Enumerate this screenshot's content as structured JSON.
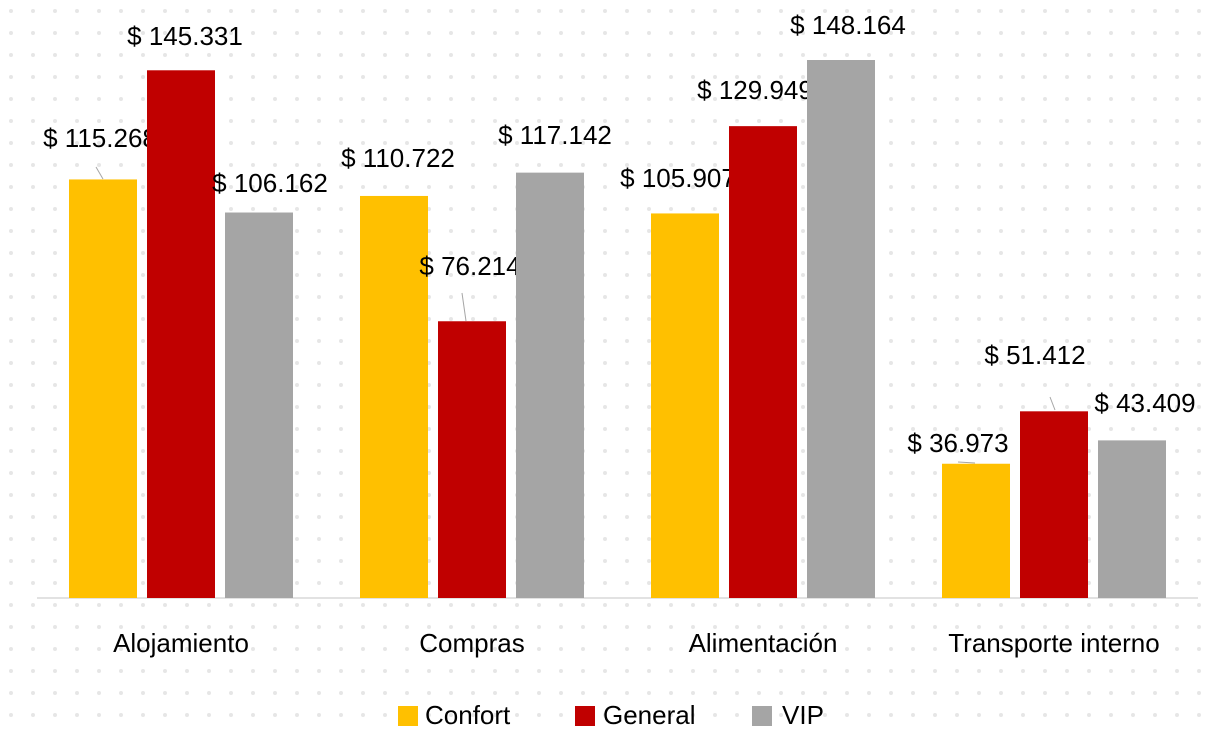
{
  "chart_data": {
    "type": "bar",
    "categories": [
      "Alojamiento",
      "Compras",
      "Alimentación",
      "Transporte interno"
    ],
    "series": [
      {
        "name": "Confort",
        "color": "#FFC000",
        "values": [
          115268,
          110722,
          105907,
          36973
        ],
        "value_labels": [
          "$ 115.268",
          "$ 110.722",
          "$ 105.907",
          "$ 36.973"
        ]
      },
      {
        "name": "General",
        "color": "#C00000",
        "values": [
          145331,
          76214,
          129949,
          51412
        ],
        "value_labels": [
          "$ 145.331",
          "$ 76.214",
          "$ 129.949",
          "$ 51.412"
        ]
      },
      {
        "name": "VIP",
        "color": "#A5A5A5",
        "values": [
          106162,
          117142,
          148164,
          43409
        ],
        "value_labels": [
          "$ 106.162",
          "$ 117.142",
          "$ 148.164",
          "$ 43.409"
        ]
      }
    ],
    "legend": "bottom"
  }
}
